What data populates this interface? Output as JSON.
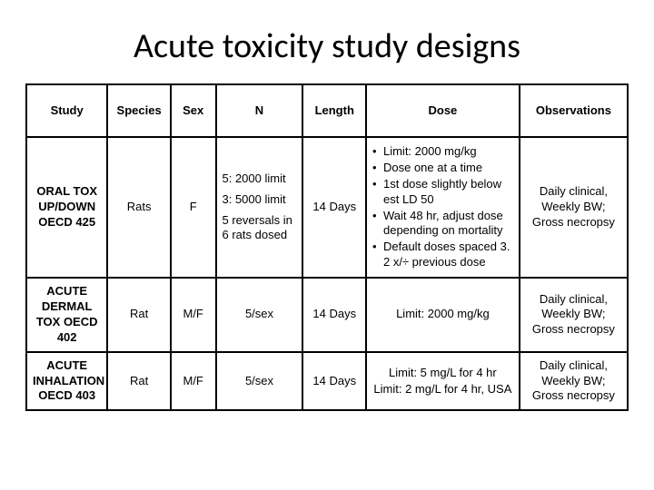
{
  "title": "Acute toxicity study designs",
  "columns": [
    "Study",
    "Species",
    "Sex",
    "N",
    "Length",
    "Dose",
    "Observations"
  ],
  "rows": [
    {
      "study": "ORAL TOX UP/DOWN OECD 425",
      "species": "Rats",
      "sex": "F",
      "n_blocks": [
        "5: 2000 limit",
        "3: 5000 limit",
        "5 reversals in 6 rats dosed"
      ],
      "length": "14 Days",
      "dose_bullets": [
        "Limit: 2000 mg/kg",
        "Dose one at a time",
        "1st dose slightly below est LD 50",
        "Wait 48 hr, adjust dose depending on mortality",
        "Default doses spaced 3. 2 x/÷ previous dose"
      ],
      "dose_lines": [],
      "obs": "Daily clinical, Weekly BW; Gross necropsy"
    },
    {
      "study": "ACUTE DERMAL TOX OECD 402",
      "species": "Rat",
      "sex": "M/F",
      "n_blocks": [
        "5/sex"
      ],
      "length": "14 Days",
      "dose_bullets": [],
      "dose_lines": [
        "Limit: 2000 mg/kg"
      ],
      "obs": "Daily clinical, Weekly BW; Gross necropsy"
    },
    {
      "study": "ACUTE INHALATION OECD 403",
      "species": "Rat",
      "sex": "M/F",
      "n_blocks": [
        "5/sex"
      ],
      "length": "14 Days",
      "dose_bullets": [],
      "dose_lines": [
        "Limit: 5 mg/L for 4 hr",
        "",
        "Limit: 2 mg/L for 4 hr, USA"
      ],
      "obs": "Daily clinical, Weekly BW; Gross necropsy"
    }
  ],
  "style": {
    "type": "table",
    "background_color": "#ffffff",
    "border_color": "#000000",
    "text_color": "#000000",
    "title_fontsize": 38,
    "header_fontsize": 13,
    "cell_fontsize": 13,
    "column_widths_pct": [
      13.5,
      10.5,
      7.5,
      14.5,
      10.5,
      25.5,
      18
    ]
  }
}
